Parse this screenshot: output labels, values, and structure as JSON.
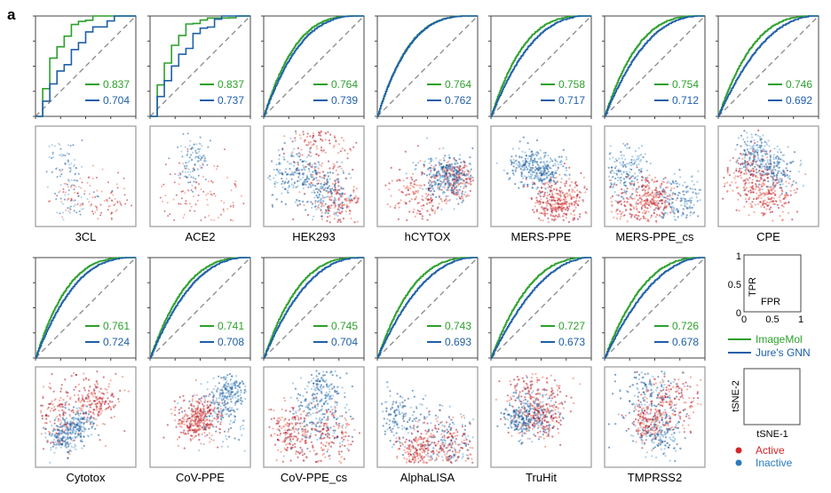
{
  "panel_letter": "a",
  "colors": {
    "imagemol": "#2ca02c",
    "gnn": "#1f5fa8",
    "active": "#d62728",
    "inactive": "#2b7bba",
    "diag": "#888888"
  },
  "chart_data": {
    "type": "line",
    "title": "ROC curves and tSNE embeddings per assay",
    "xlabel": "FPR",
    "ylabel": "TPR",
    "xlim": [
      0,
      1
    ],
    "ylim": [
      0,
      1
    ],
    "series_names": [
      "ImageMol",
      "Jure's GNN"
    ],
    "panels": [
      {
        "name": "3CL",
        "imagemol": "0.837",
        "gnn": "0.704"
      },
      {
        "name": "ACE2",
        "imagemol": "0.837",
        "gnn": "0.737"
      },
      {
        "name": "HEK293",
        "imagemol": "0.764",
        "gnn": "0.739"
      },
      {
        "name": "hCYTOX",
        "imagemol": "0.764",
        "gnn": "0.762"
      },
      {
        "name": "MERS-PPE",
        "imagemol": "0.758",
        "gnn": "0.717"
      },
      {
        "name": "MERS-PPE_cs",
        "imagemol": "0.754",
        "gnn": "0.712"
      },
      {
        "name": "CPE",
        "imagemol": "0.746",
        "gnn": "0.692"
      },
      {
        "name": "Cytotox",
        "imagemol": "0.761",
        "gnn": "0.724"
      },
      {
        "name": "CoV-PPE",
        "imagemol": "0.741",
        "gnn": "0.708"
      },
      {
        "name": "CoV-PPE_cs",
        "imagemol": "0.745",
        "gnn": "0.704"
      },
      {
        "name": "AlphaLISA",
        "imagemol": "0.743",
        "gnn": "0.693"
      },
      {
        "name": "TruHit",
        "imagemol": "0.727",
        "gnn": "0.673"
      },
      {
        "name": "TMPRSS2",
        "imagemol": "0.726",
        "gnn": "0.678"
      }
    ]
  },
  "legend": {
    "roc_ticks_y": [
      "1",
      "0.5",
      "0"
    ],
    "roc_ticks_x": [
      "0",
      "0.5",
      "1"
    ],
    "tpr": "TPR",
    "fpr": "FPR",
    "imagemol": "ImageMol",
    "gnn": "Jure's GNN",
    "tsne2": "tSNE-2",
    "tsne1": "tSNE-1",
    "active": "Active",
    "inactive": "Inactive"
  }
}
